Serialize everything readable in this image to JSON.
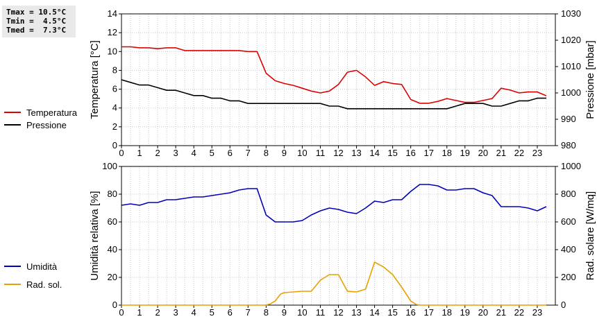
{
  "stats": {
    "tmax": "Tmax = 10.5°C",
    "tmin": "Tmin =  4.5°C",
    "tmed": "Tmed =  7.3°C"
  },
  "chart_data": [
    {
      "type": "line",
      "xlim": [
        0,
        24
      ],
      "x_ticks": [
        0,
        1,
        2,
        3,
        4,
        5,
        6,
        7,
        8,
        9,
        10,
        11,
        12,
        13,
        14,
        15,
        16,
        17,
        18,
        19,
        20,
        21,
        22,
        23
      ],
      "ylabel_left": "Temperatura [°C]",
      "ylim_left": [
        0,
        14
      ],
      "y_ticks_left": [
        0,
        2,
        4,
        6,
        8,
        10,
        12,
        14
      ],
      "ylabel_right": "Pressione [mbar]",
      "ylim_right": [
        980,
        1030
      ],
      "y_ticks_right": [
        980,
        990,
        1000,
        1010,
        1020,
        1030
      ],
      "grid": true,
      "legend_placement": "left",
      "series": [
        {
          "name": "Temperatura",
          "axis": "left",
          "color": "#dd0000",
          "x": [
            0,
            0.5,
            1,
            1.5,
            2,
            2.5,
            3,
            3.5,
            4,
            4.5,
            5,
            5.5,
            6,
            6.5,
            7,
            7.5,
            8,
            8.5,
            9,
            9.5,
            10,
            10.5,
            11,
            11.5,
            12,
            12.5,
            13,
            13.5,
            14,
            14.5,
            15,
            15.5,
            16,
            16.5,
            17,
            17.5,
            18,
            18.5,
            19,
            19.5,
            20,
            20.5,
            21,
            21.5,
            22,
            22.5,
            23,
            23.5
          ],
          "values": [
            10.5,
            10.5,
            10.4,
            10.4,
            10.3,
            10.4,
            10.4,
            10.1,
            10.1,
            10.1,
            10.1,
            10.1,
            10.1,
            10.1,
            10.0,
            10.0,
            7.7,
            6.9,
            6.6,
            6.4,
            6.1,
            5.8,
            5.6,
            5.8,
            6.5,
            7.8,
            8.0,
            7.3,
            6.4,
            6.8,
            6.6,
            6.5,
            4.9,
            4.5,
            4.5,
            4.7,
            5.0,
            4.8,
            4.6,
            4.6,
            4.8,
            5.0,
            6.1,
            5.9,
            5.6,
            5.7,
            5.7,
            5.3
          ]
        },
        {
          "name": "Pressione",
          "axis": "right",
          "color": "#000000",
          "x": [
            0,
            0.5,
            1,
            1.5,
            2,
            2.5,
            3,
            3.5,
            4,
            4.5,
            5,
            5.5,
            6,
            6.5,
            7,
            7.5,
            8,
            8.5,
            9,
            9.5,
            10,
            10.5,
            11,
            11.5,
            12,
            12.5,
            13,
            13.5,
            14,
            14.5,
            15,
            15.5,
            16,
            16.5,
            17,
            17.5,
            18,
            18.5,
            19,
            19.5,
            20,
            20.5,
            21,
            21.5,
            22,
            22.5,
            23,
            23.5
          ],
          "values": [
            1005,
            1004,
            1003,
            1003,
            1002,
            1001,
            1001,
            1000,
            999,
            999,
            998,
            998,
            997,
            997,
            996,
            996,
            996,
            996,
            996,
            996,
            996,
            996,
            996,
            995,
            995,
            994,
            994,
            994,
            994,
            994,
            994,
            994,
            994,
            994,
            994,
            994,
            994,
            995,
            996,
            996,
            996,
            995,
            995,
            996,
            997,
            997,
            998,
            998
          ]
        }
      ]
    },
    {
      "type": "line",
      "xlim": [
        0,
        24
      ],
      "x_ticks": [
        0,
        1,
        2,
        3,
        4,
        5,
        6,
        7,
        8,
        9,
        10,
        11,
        12,
        13,
        14,
        15,
        16,
        17,
        18,
        19,
        20,
        21,
        22,
        23
      ],
      "ylabel_left": "Umidità relativa [%]",
      "ylim_left": [
        0,
        100
      ],
      "y_ticks_left": [
        0,
        20,
        40,
        60,
        80,
        100
      ],
      "ylabel_right": "Rad. solare [W/mq]",
      "ylim_right": [
        0,
        1000
      ],
      "y_ticks_right": [
        0,
        200,
        400,
        600,
        800,
        1000
      ],
      "grid": true,
      "legend_placement": "left",
      "series": [
        {
          "name": "Umidità",
          "axis": "left",
          "color": "#0000bb",
          "x": [
            0,
            0.5,
            1,
            1.5,
            2,
            2.5,
            3,
            3.5,
            4,
            4.5,
            5,
            5.5,
            6,
            6.5,
            7,
            7.5,
            8,
            8.5,
            9,
            9.5,
            10,
            10.5,
            11,
            11.5,
            12,
            12.5,
            13,
            13.5,
            14,
            14.5,
            15,
            15.5,
            16,
            16.5,
            17,
            17.5,
            18,
            18.5,
            19,
            19.5,
            20,
            20.5,
            21,
            21.5,
            22,
            22.5,
            23,
            23.5
          ],
          "values": [
            72,
            73,
            72,
            74,
            74,
            76,
            76,
            77,
            78,
            78,
            79,
            80,
            81,
            83,
            84,
            84,
            65,
            60,
            60,
            60,
            61,
            65,
            68,
            70,
            69,
            67,
            66,
            70,
            75,
            74,
            76,
            76,
            82,
            87,
            87,
            86,
            83,
            83,
            84,
            84,
            81,
            79,
            71,
            71,
            71,
            70,
            68,
            71
          ]
        },
        {
          "name": "Rad. sol.",
          "axis": "right",
          "color": "#e8a000",
          "x": [
            0,
            0.5,
            1,
            1.5,
            2,
            2.5,
            3,
            3.5,
            4,
            4.5,
            5,
            5.5,
            6,
            6.5,
            7,
            7.5,
            8,
            8.25,
            8.5,
            8.8,
            9,
            9.5,
            10,
            10.5,
            11,
            11.5,
            12,
            12.5,
            13,
            13.5,
            14,
            14.5,
            15,
            15.5,
            16,
            16.3,
            16.5,
            17,
            17.5,
            18,
            18.5,
            19,
            19.5,
            20,
            20.5,
            21,
            21.5,
            22,
            22.5,
            23,
            23.5
          ],
          "values": [
            0,
            0,
            0,
            0,
            0,
            0,
            0,
            0,
            0,
            0,
            0,
            0,
            0,
            0,
            0,
            0,
            0,
            10,
            30,
            80,
            90,
            95,
            100,
            100,
            180,
            220,
            220,
            100,
            95,
            115,
            310,
            275,
            220,
            130,
            30,
            5,
            0,
            0,
            0,
            0,
            0,
            0,
            0,
            0,
            0,
            0,
            0,
            0,
            0,
            0,
            0
          ]
        }
      ]
    }
  ]
}
